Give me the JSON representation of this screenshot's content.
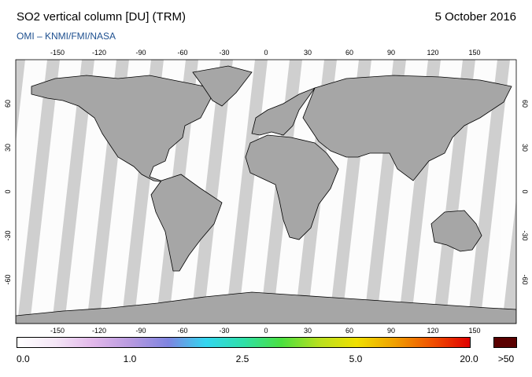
{
  "header": {
    "title": "SO2 vertical column [DU] (TRM)",
    "date": "5 October 2016",
    "credit": "OMI  –  KNMI/FMI/NASA"
  },
  "map": {
    "lon_ticks": [
      "-150",
      "-120",
      "-90",
      "-60",
      "-30",
      "0",
      "30",
      "60",
      "90",
      "120",
      "150"
    ],
    "lat_ticks_left": [
      "60",
      "30",
      "0",
      "-30",
      "-60"
    ],
    "lat_ticks_right": [
      "60",
      "30",
      "0",
      "-30",
      "-60"
    ],
    "colors": {
      "no_data": "#cfcfcf",
      "land": "#a6a6a6",
      "swath": "#ffffff",
      "coast": "#000000"
    }
  },
  "colorbar": {
    "labels": [
      "0.0",
      "1.0",
      "2.5",
      "5.0",
      "20.0"
    ],
    "max_label": ">50",
    "max_color": "#5a0000",
    "gradient": [
      "#ffffff",
      "#f4e6f6",
      "#e2b8ea",
      "#b89ae0",
      "#7f84e0",
      "#33d6f0",
      "#2fe0a8",
      "#4ae040",
      "#b8e020",
      "#f0e000",
      "#f0a000",
      "#f05000",
      "#e00000"
    ]
  }
}
